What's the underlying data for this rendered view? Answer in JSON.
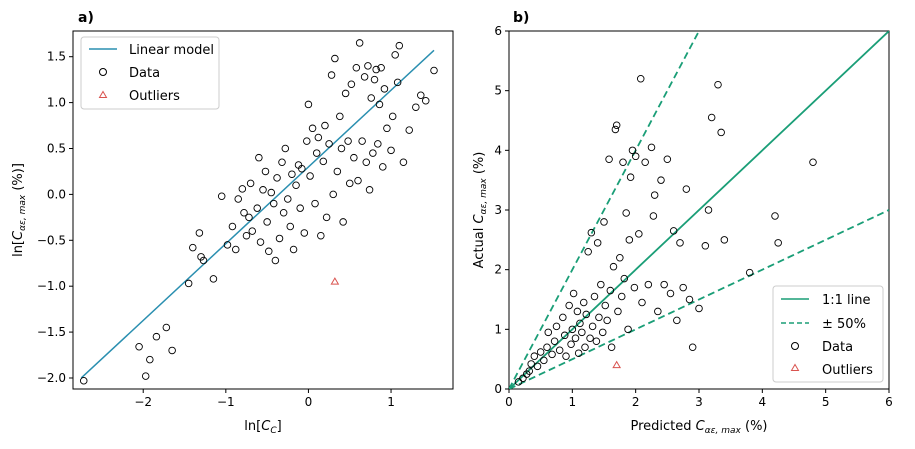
{
  "chart_data": [
    {
      "panel": "a)",
      "type": "scatter",
      "xlabel": "ln[C_C]",
      "ylabel": "ln[C_αε,max (%)]",
      "xlim": [
        -2.85,
        1.75
      ],
      "ylim": [
        -2.12,
        1.78
      ],
      "xticks": [
        -2,
        -1,
        0,
        1
      ],
      "yticks": [
        -2.0,
        -1.5,
        -1.0,
        -0.5,
        0.0,
        0.5,
        1.0,
        1.5
      ],
      "ytick_labels": [
        "−2.0",
        "−1.5",
        "−1.0",
        "−0.5",
        "0.0",
        "0.5",
        "1.0",
        "1.5"
      ],
      "xtick_labels": [
        "−2",
        "−1",
        "0",
        "1"
      ],
      "legend": {
        "position": "top-left",
        "entries": [
          "Linear model",
          "Data",
          "Outliers"
        ]
      },
      "series": [
        {
          "name": "Linear model",
          "kind": "line",
          "color": "#2a8fb0",
          "x": [
            -2.75,
            1.52
          ],
          "y": [
            -2.0,
            1.57
          ]
        },
        {
          "name": "Data",
          "kind": "scatter",
          "marker": "circle",
          "color": "#000000",
          "points": [
            [
              -2.72,
              -2.03
            ],
            [
              -2.05,
              -1.66
            ],
            [
              -1.92,
              -1.8
            ],
            [
              -1.97,
              -1.98
            ],
            [
              -1.84,
              -1.55
            ],
            [
              -1.72,
              -1.45
            ],
            [
              -1.65,
              -1.7
            ],
            [
              -1.45,
              -0.97
            ],
            [
              -1.4,
              -0.58
            ],
            [
              -1.32,
              -0.42
            ],
            [
              -1.3,
              -0.68
            ],
            [
              -1.27,
              -0.72
            ],
            [
              -1.15,
              -0.92
            ],
            [
              -1.05,
              -0.02
            ],
            [
              -0.98,
              -0.55
            ],
            [
              -0.92,
              -0.35
            ],
            [
              -0.88,
              -0.6
            ],
            [
              -0.85,
              -0.05
            ],
            [
              -0.8,
              0.06
            ],
            [
              -0.78,
              -0.2
            ],
            [
              -0.75,
              -0.45
            ],
            [
              -0.72,
              -0.25
            ],
            [
              -0.7,
              0.12
            ],
            [
              -0.68,
              -0.4
            ],
            [
              -0.62,
              -0.15
            ],
            [
              -0.6,
              0.4
            ],
            [
              -0.58,
              -0.52
            ],
            [
              -0.55,
              0.05
            ],
            [
              -0.52,
              0.25
            ],
            [
              -0.5,
              -0.3
            ],
            [
              -0.48,
              -0.62
            ],
            [
              -0.45,
              0.02
            ],
            [
              -0.42,
              -0.1
            ],
            [
              -0.4,
              -0.72
            ],
            [
              -0.38,
              0.18
            ],
            [
              -0.35,
              -0.48
            ],
            [
              -0.32,
              0.35
            ],
            [
              -0.3,
              -0.2
            ],
            [
              -0.28,
              0.5
            ],
            [
              -0.25,
              -0.05
            ],
            [
              -0.22,
              -0.35
            ],
            [
              -0.2,
              0.22
            ],
            [
              -0.18,
              -0.6
            ],
            [
              -0.15,
              0.1
            ],
            [
              -0.12,
              0.32
            ],
            [
              -0.1,
              -0.15
            ],
            [
              -0.08,
              0.28
            ],
            [
              -0.05,
              -0.42
            ],
            [
              -0.02,
              0.58
            ],
            [
              0.0,
              0.98
            ],
            [
              0.02,
              0.2
            ],
            [
              0.05,
              0.72
            ],
            [
              0.08,
              -0.1
            ],
            [
              0.1,
              0.45
            ],
            [
              0.12,
              0.62
            ],
            [
              0.15,
              -0.45
            ],
            [
              0.18,
              0.36
            ],
            [
              0.2,
              0.75
            ],
            [
              0.22,
              -0.25
            ],
            [
              0.25,
              0.55
            ],
            [
              0.28,
              1.3
            ],
            [
              0.3,
              0.0
            ],
            [
              0.32,
              1.48
            ],
            [
              0.35,
              0.25
            ],
            [
              0.38,
              0.85
            ],
            [
              0.4,
              0.5
            ],
            [
              0.42,
              -0.3
            ],
            [
              0.45,
              1.1
            ],
            [
              0.48,
              0.58
            ],
            [
              0.5,
              0.12
            ],
            [
              0.52,
              1.2
            ],
            [
              0.55,
              0.4
            ],
            [
              0.58,
              1.38
            ],
            [
              0.6,
              0.15
            ],
            [
              0.62,
              1.65
            ],
            [
              0.65,
              0.58
            ],
            [
              0.68,
              1.28
            ],
            [
              0.7,
              0.35
            ],
            [
              0.72,
              1.4
            ],
            [
              0.74,
              0.05
            ],
            [
              0.76,
              1.05
            ],
            [
              0.78,
              0.45
            ],
            [
              0.8,
              1.25
            ],
            [
              0.82,
              1.36
            ],
            [
              0.84,
              0.55
            ],
            [
              0.86,
              0.98
            ],
            [
              0.88,
              1.38
            ],
            [
              0.9,
              0.3
            ],
            [
              0.92,
              1.15
            ],
            [
              0.95,
              0.72
            ],
            [
              1.0,
              0.48
            ],
            [
              1.02,
              0.85
            ],
            [
              1.05,
              1.52
            ],
            [
              1.08,
              1.22
            ],
            [
              1.1,
              1.62
            ],
            [
              1.15,
              0.35
            ],
            [
              1.22,
              0.7
            ],
            [
              1.3,
              0.95
            ],
            [
              1.36,
              1.08
            ],
            [
              1.42,
              1.02
            ],
            [
              1.52,
              1.35
            ]
          ]
        },
        {
          "name": "Outliers",
          "kind": "scatter",
          "marker": "triangle",
          "color": "#d9534f",
          "points": [
            [
              0.32,
              -0.95
            ]
          ]
        }
      ]
    },
    {
      "panel": "b)",
      "type": "scatter",
      "xlabel": "Predicted C_αε,max (%)",
      "ylabel": "Actual C_αε,max (%)",
      "xlim": [
        0,
        6
      ],
      "ylim": [
        0,
        6
      ],
      "xticks": [
        0,
        1,
        2,
        3,
        4,
        5,
        6
      ],
      "yticks": [
        0,
        1,
        2,
        3,
        4,
        5,
        6
      ],
      "xtick_labels": [
        "0",
        "1",
        "2",
        "3",
        "4",
        "5",
        "6"
      ],
      "ytick_labels": [
        "0",
        "1",
        "2",
        "3",
        "4",
        "5",
        "6"
      ],
      "legend": {
        "position": "bottom-right",
        "entries": [
          "1:1 line",
          "± 50%",
          "Data",
          "Outliers"
        ]
      },
      "series": [
        {
          "name": "1:1 line",
          "kind": "line",
          "color": "#1a9e77",
          "slope": 1.0
        },
        {
          "name": "± 50%",
          "kind": "dashed-line",
          "color": "#1a9e77",
          "slopes": [
            2.0,
            0.5
          ]
        },
        {
          "name": "Data",
          "kind": "scatter",
          "marker": "circle",
          "color": "#000000",
          "points": [
            [
              0.15,
              0.12
            ],
            [
              0.22,
              0.18
            ],
            [
              0.28,
              0.25
            ],
            [
              0.32,
              0.3
            ],
            [
              0.35,
              0.42
            ],
            [
              0.4,
              0.55
            ],
            [
              0.45,
              0.38
            ],
            [
              0.5,
              0.62
            ],
            [
              0.55,
              0.48
            ],
            [
              0.6,
              0.7
            ],
            [
              0.62,
              0.95
            ],
            [
              0.68,
              0.58
            ],
            [
              0.72,
              0.8
            ],
            [
              0.75,
              1.05
            ],
            [
              0.8,
              0.65
            ],
            [
              0.85,
              1.2
            ],
            [
              0.88,
              0.9
            ],
            [
              0.9,
              0.55
            ],
            [
              0.95,
              1.4
            ],
            [
              0.98,
              0.75
            ],
            [
              1.0,
              1.0
            ],
            [
              1.02,
              1.6
            ],
            [
              1.05,
              0.85
            ],
            [
              1.08,
              1.3
            ],
            [
              1.1,
              0.6
            ],
            [
              1.12,
              1.1
            ],
            [
              1.15,
              0.95
            ],
            [
              1.18,
              1.45
            ],
            [
              1.2,
              0.7
            ],
            [
              1.22,
              1.25
            ],
            [
              1.25,
              2.3
            ],
            [
              1.28,
              0.85
            ],
            [
              1.3,
              2.62
            ],
            [
              1.32,
              1.05
            ],
            [
              1.35,
              1.55
            ],
            [
              1.38,
              0.8
            ],
            [
              1.4,
              2.45
            ],
            [
              1.42,
              1.2
            ],
            [
              1.45,
              1.75
            ],
            [
              1.48,
              0.95
            ],
            [
              1.5,
              2.8
            ],
            [
              1.52,
              1.4
            ],
            [
              1.55,
              1.15
            ],
            [
              1.58,
              3.85
            ],
            [
              1.6,
              1.65
            ],
            [
              1.62,
              0.7
            ],
            [
              1.65,
              2.05
            ],
            [
              1.68,
              4.35
            ],
            [
              1.7,
              4.42
            ],
            [
              1.72,
              1.3
            ],
            [
              1.75,
              2.2
            ],
            [
              1.78,
              1.55
            ],
            [
              1.8,
              3.8
            ],
            [
              1.82,
              1.85
            ],
            [
              1.85,
              2.95
            ],
            [
              1.88,
              1.0
            ],
            [
              1.9,
              2.5
            ],
            [
              1.92,
              3.55
            ],
            [
              1.95,
              4.0
            ],
            [
              1.98,
              1.7
            ],
            [
              2.0,
              3.9
            ],
            [
              2.05,
              2.6
            ],
            [
              2.08,
              5.2
            ],
            [
              2.1,
              1.45
            ],
            [
              2.15,
              3.8
            ],
            [
              2.2,
              1.75
            ],
            [
              2.25,
              4.05
            ],
            [
              2.28,
              2.9
            ],
            [
              2.3,
              3.25
            ],
            [
              2.35,
              1.3
            ],
            [
              2.4,
              3.5
            ],
            [
              2.45,
              1.75
            ],
            [
              2.5,
              3.85
            ],
            [
              2.55,
              1.6
            ],
            [
              2.6,
              2.65
            ],
            [
              2.65,
              1.15
            ],
            [
              2.7,
              2.45
            ],
            [
              2.75,
              1.7
            ],
            [
              2.8,
              3.35
            ],
            [
              2.85,
              1.5
            ],
            [
              2.9,
              0.7
            ],
            [
              3.0,
              1.35
            ],
            [
              3.1,
              2.4
            ],
            [
              3.15,
              3.0
            ],
            [
              3.2,
              4.55
            ],
            [
              3.3,
              5.1
            ],
            [
              3.35,
              4.3
            ],
            [
              3.4,
              2.5
            ],
            [
              3.8,
              1.95
            ],
            [
              4.2,
              2.9
            ],
            [
              4.25,
              2.45
            ],
            [
              4.8,
              3.8
            ]
          ]
        },
        {
          "name": "Outliers",
          "kind": "scatter",
          "marker": "triangle",
          "color": "#d9534f",
          "points": [
            [
              1.7,
              0.4
            ]
          ]
        }
      ]
    }
  ]
}
